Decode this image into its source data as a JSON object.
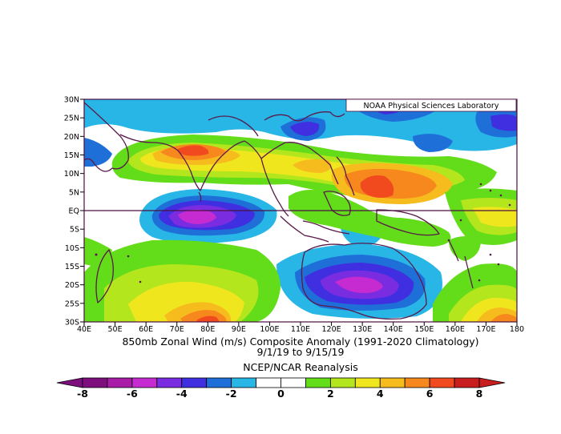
{
  "map": {
    "lat_labels": [
      "30N",
      "25N",
      "20N",
      "15N",
      "10N",
      "5N",
      "EQ",
      "5S",
      "10S",
      "15S",
      "20S",
      "25S",
      "30S"
    ],
    "lon_labels": [
      "40E",
      "50E",
      "60E",
      "70E",
      "80E",
      "90E",
      "100E",
      "110E",
      "120E",
      "130E",
      "140E",
      "150E",
      "160E",
      "170E",
      "180"
    ],
    "credit": "NOAA Physical Sciences Laboratory",
    "title_line1": "850mb Zonal Wind (m/s) Composite Anomaly (1991-2020 Climatology)",
    "title_line2": "9/1/19   to 9/15/19",
    "title_line3": "NCEP/NCAR Reanalysis",
    "colorbar": {
      "ticks": [
        "-8",
        "-6",
        "-4",
        "-2",
        "0",
        "2",
        "4",
        "6",
        "8"
      ],
      "colors": [
        "#7e0e7e",
        "#a81ca8",
        "#c52bd0",
        "#7a2de0",
        "#3f2fe0",
        "#1f6fd8",
        "#27b6e6",
        "#ffffff",
        "#ffffff",
        "#63dc1a",
        "#b4e61e",
        "#f0e61e",
        "#f6bc1e",
        "#f6881e",
        "#f04a1e",
        "#c81e1e"
      ]
    }
  }
}
